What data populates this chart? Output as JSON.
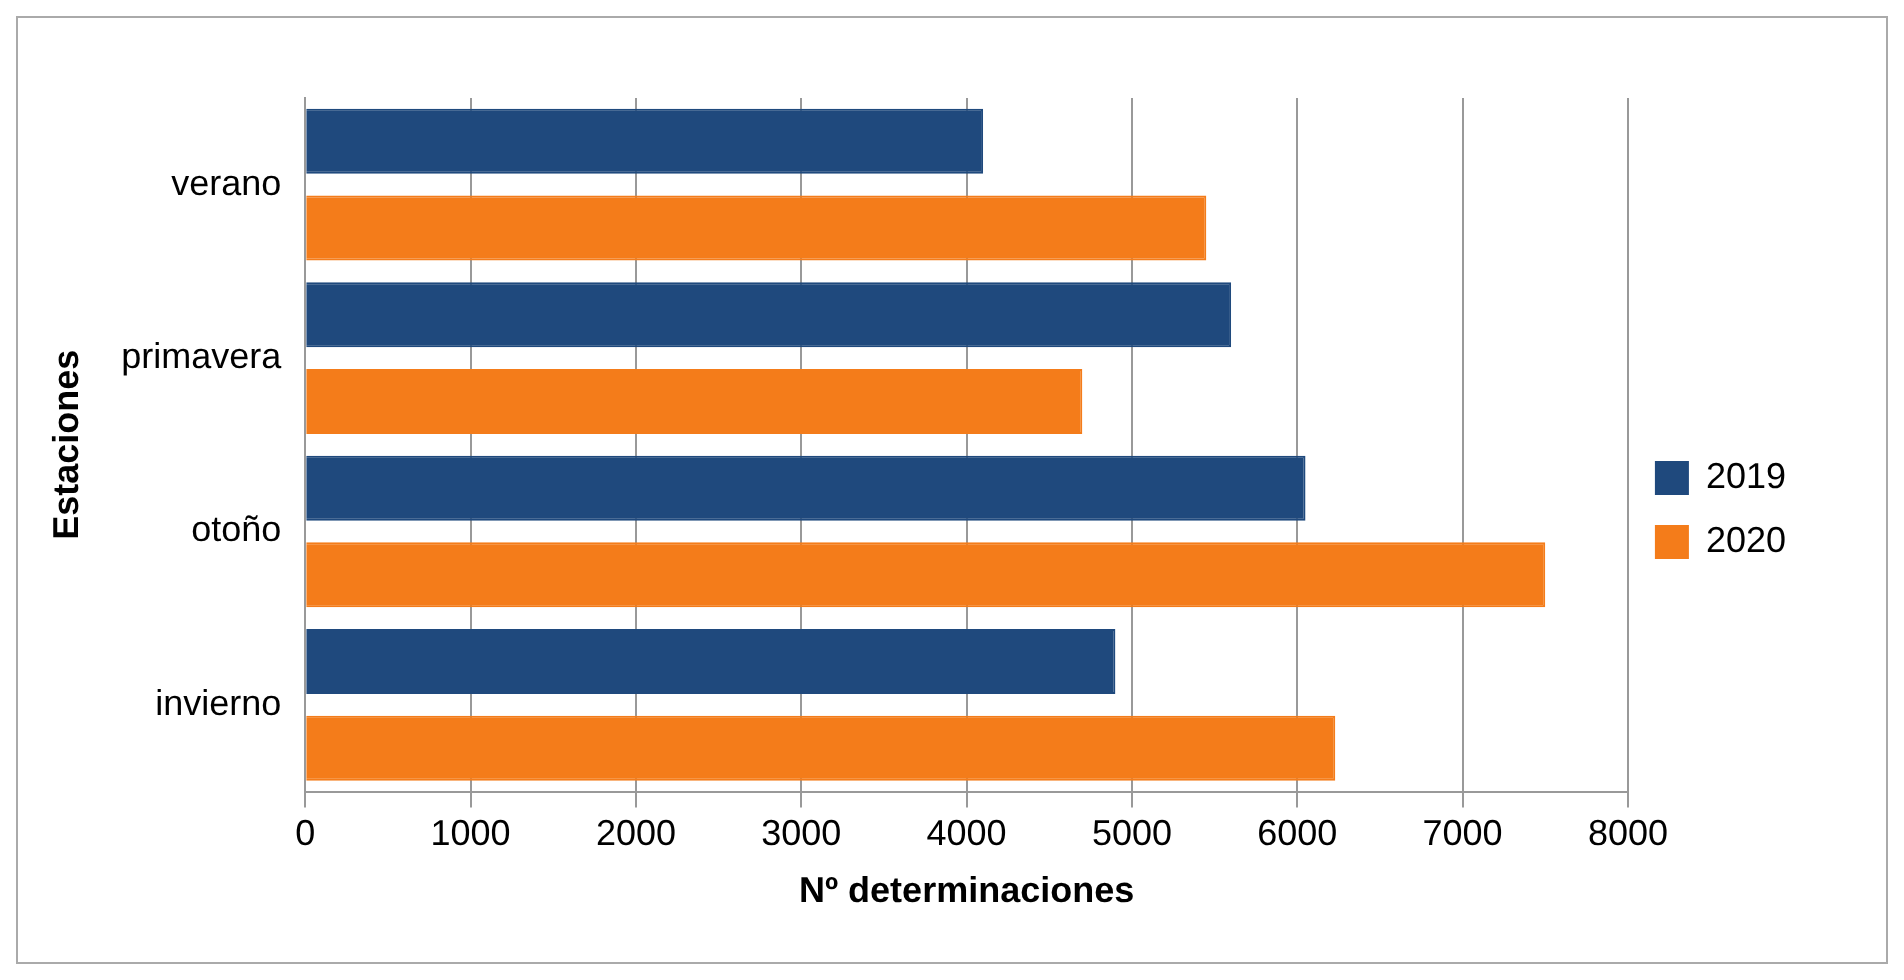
{
  "chart_data": {
    "type": "bar",
    "orientation": "horizontal",
    "categories": [
      "verano",
      "primavera",
      "otoño",
      "invierno"
    ],
    "series": [
      {
        "name": "2019",
        "color": "#1f497d",
        "values": [
          4100,
          5600,
          6050,
          4900
        ]
      },
      {
        "name": "2020",
        "color": "#f47c1a",
        "values": [
          5450,
          4700,
          7500,
          6230
        ]
      }
    ],
    "xlabel": "Nº determinaciones",
    "ylabel": "Estaciones",
    "xlim": [
      0,
      8000
    ],
    "xticks": [
      0,
      1000,
      2000,
      3000,
      4000,
      5000,
      6000,
      7000,
      8000
    ],
    "grid": "x",
    "legend": "right"
  }
}
